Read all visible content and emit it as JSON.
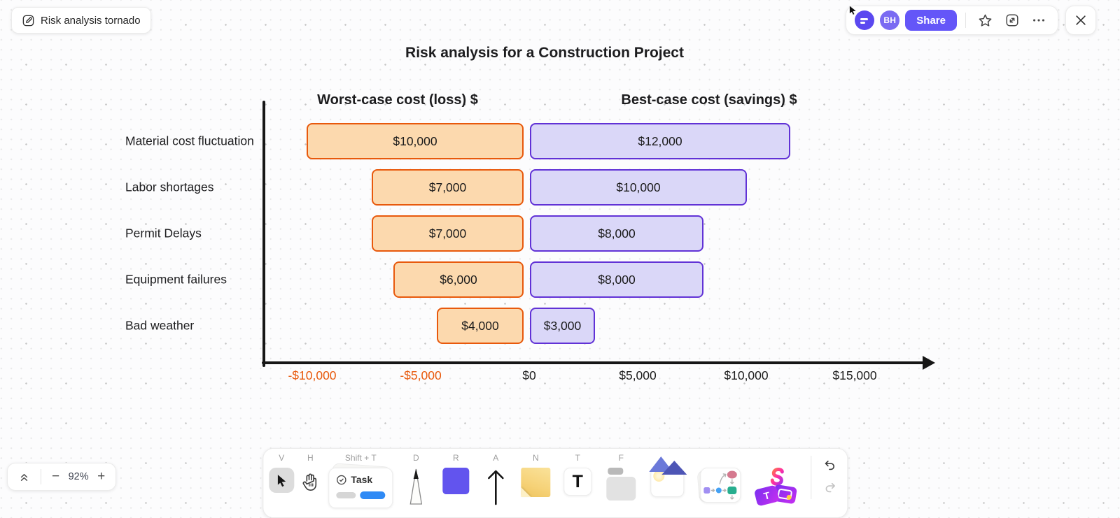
{
  "header": {
    "board_title": "Risk analysis tornado",
    "share_label": "Share",
    "avatar_initials": "BH"
  },
  "chart_data": {
    "type": "bar",
    "subtype": "tornado",
    "title": "Risk analysis for a Construction Project",
    "categories": [
      "Material cost fluctuation",
      "Labor shortages",
      "Permit Delays",
      "Equipment failures",
      "Bad weather"
    ],
    "series": [
      {
        "name": "Worst-case cost (loss) $",
        "side": "left",
        "direction": "negative",
        "values": [
          10000,
          7000,
          7000,
          6000,
          4000
        ],
        "labels": [
          "$10,000",
          "$7,000",
          "$7,000",
          "$6,000",
          "$4,000"
        ],
        "fill": "#fcd9ae",
        "stroke": "#e8590c"
      },
      {
        "name": "Best-case cost (savings) $",
        "side": "right",
        "direction": "positive",
        "values": [
          12000,
          10000,
          8000,
          8000,
          3000
        ],
        "labels": [
          "$12,000",
          "$10,000",
          "$8,000",
          "$8,000",
          "$3,000"
        ],
        "fill": "#dad7f8",
        "stroke": "#6132d6"
      }
    ],
    "x_ticks": [
      {
        "value": -10000,
        "label": "-$10,000",
        "color": "#e8590c"
      },
      {
        "value": -5000,
        "label": "-$5,000",
        "color": "#e8590c"
      },
      {
        "value": 0,
        "label": "$0",
        "color": "#1d1d1d"
      },
      {
        "value": 5000,
        "label": "$5,000",
        "color": "#1d1d1d"
      },
      {
        "value": 10000,
        "label": "$10,000",
        "color": "#1d1d1d"
      },
      {
        "value": 15000,
        "label": "$15,000",
        "color": "#1d1d1d"
      }
    ],
    "xlim": [
      -12000,
      19000
    ],
    "grid": false,
    "legend_position": "column-headers",
    "axis_color": "#161616"
  },
  "toolbar": {
    "tools": [
      {
        "name": "select",
        "shortcut": "V",
        "active": true
      },
      {
        "name": "hand",
        "shortcut": "H"
      },
      {
        "name": "task",
        "shortcut": "Shift + T",
        "label": "Task"
      },
      {
        "name": "pencil",
        "shortcut": "D"
      },
      {
        "name": "rectangle",
        "shortcut": "R"
      },
      {
        "name": "arrow",
        "shortcut": "A"
      },
      {
        "name": "note",
        "shortcut": "N"
      },
      {
        "name": "text",
        "shortcut": "T"
      },
      {
        "name": "frame",
        "shortcut": "F"
      },
      {
        "name": "image",
        "shortcut": ""
      },
      {
        "name": "diagram",
        "shortcut": ""
      },
      {
        "name": "ai",
        "shortcut": ""
      }
    ]
  },
  "zoom_controls": {
    "level": "92%"
  }
}
